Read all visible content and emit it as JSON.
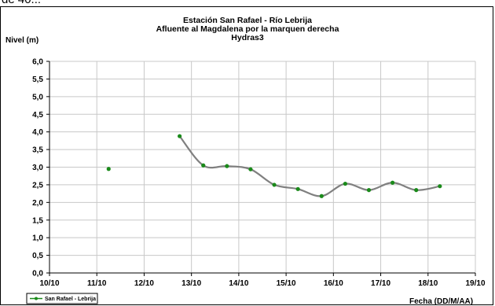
{
  "top_fragment": "de 40..:",
  "chart_data": {
    "type": "line",
    "title": [
      "Estación San Rafael - Río Lebrija",
      "Afluente al Magdalena por la marquen derecha",
      "Hydras3"
    ],
    "ylabel": "Nivel (m)",
    "xlabel": "Fecha (DD/M/AA)",
    "ylim": [
      0,
      6
    ],
    "y_ticks": [
      "0,0",
      "0,5",
      "1,0",
      "1,5",
      "2,0",
      "2,5",
      "3,0",
      "3,5",
      "4,0",
      "4,5",
      "5,0",
      "5,5",
      "6,0"
    ],
    "xlim": [
      0,
      9
    ],
    "x_ticks": [
      "10/10",
      "11/10",
      "12/10",
      "13/10",
      "14/10",
      "15/10",
      "16/10",
      "17/10",
      "18/10",
      "19/10"
    ],
    "grid": true,
    "legend_position": "bottom-left",
    "series": [
      {
        "name": "San Rafael - Lebrija",
        "color": "#808080",
        "marker_color": "#1a8a1a",
        "points": [
          {
            "x": 1.25,
            "y": 2.95,
            "connected": false
          },
          {
            "x": 2.75,
            "y": 3.88,
            "connected": true
          },
          {
            "x": 3.25,
            "y": 3.05,
            "connected": true
          },
          {
            "x": 3.75,
            "y": 3.03,
            "connected": true
          },
          {
            "x": 4.25,
            "y": 2.94,
            "connected": true
          },
          {
            "x": 4.75,
            "y": 2.5,
            "connected": true
          },
          {
            "x": 5.25,
            "y": 2.38,
            "connected": true
          },
          {
            "x": 5.75,
            "y": 2.18,
            "connected": true
          },
          {
            "x": 6.25,
            "y": 2.53,
            "connected": true
          },
          {
            "x": 6.75,
            "y": 2.35,
            "connected": true
          },
          {
            "x": 7.25,
            "y": 2.56,
            "connected": true
          },
          {
            "x": 7.75,
            "y": 2.35,
            "connected": true
          },
          {
            "x": 8.25,
            "y": 2.46,
            "connected": true
          }
        ]
      }
    ]
  }
}
